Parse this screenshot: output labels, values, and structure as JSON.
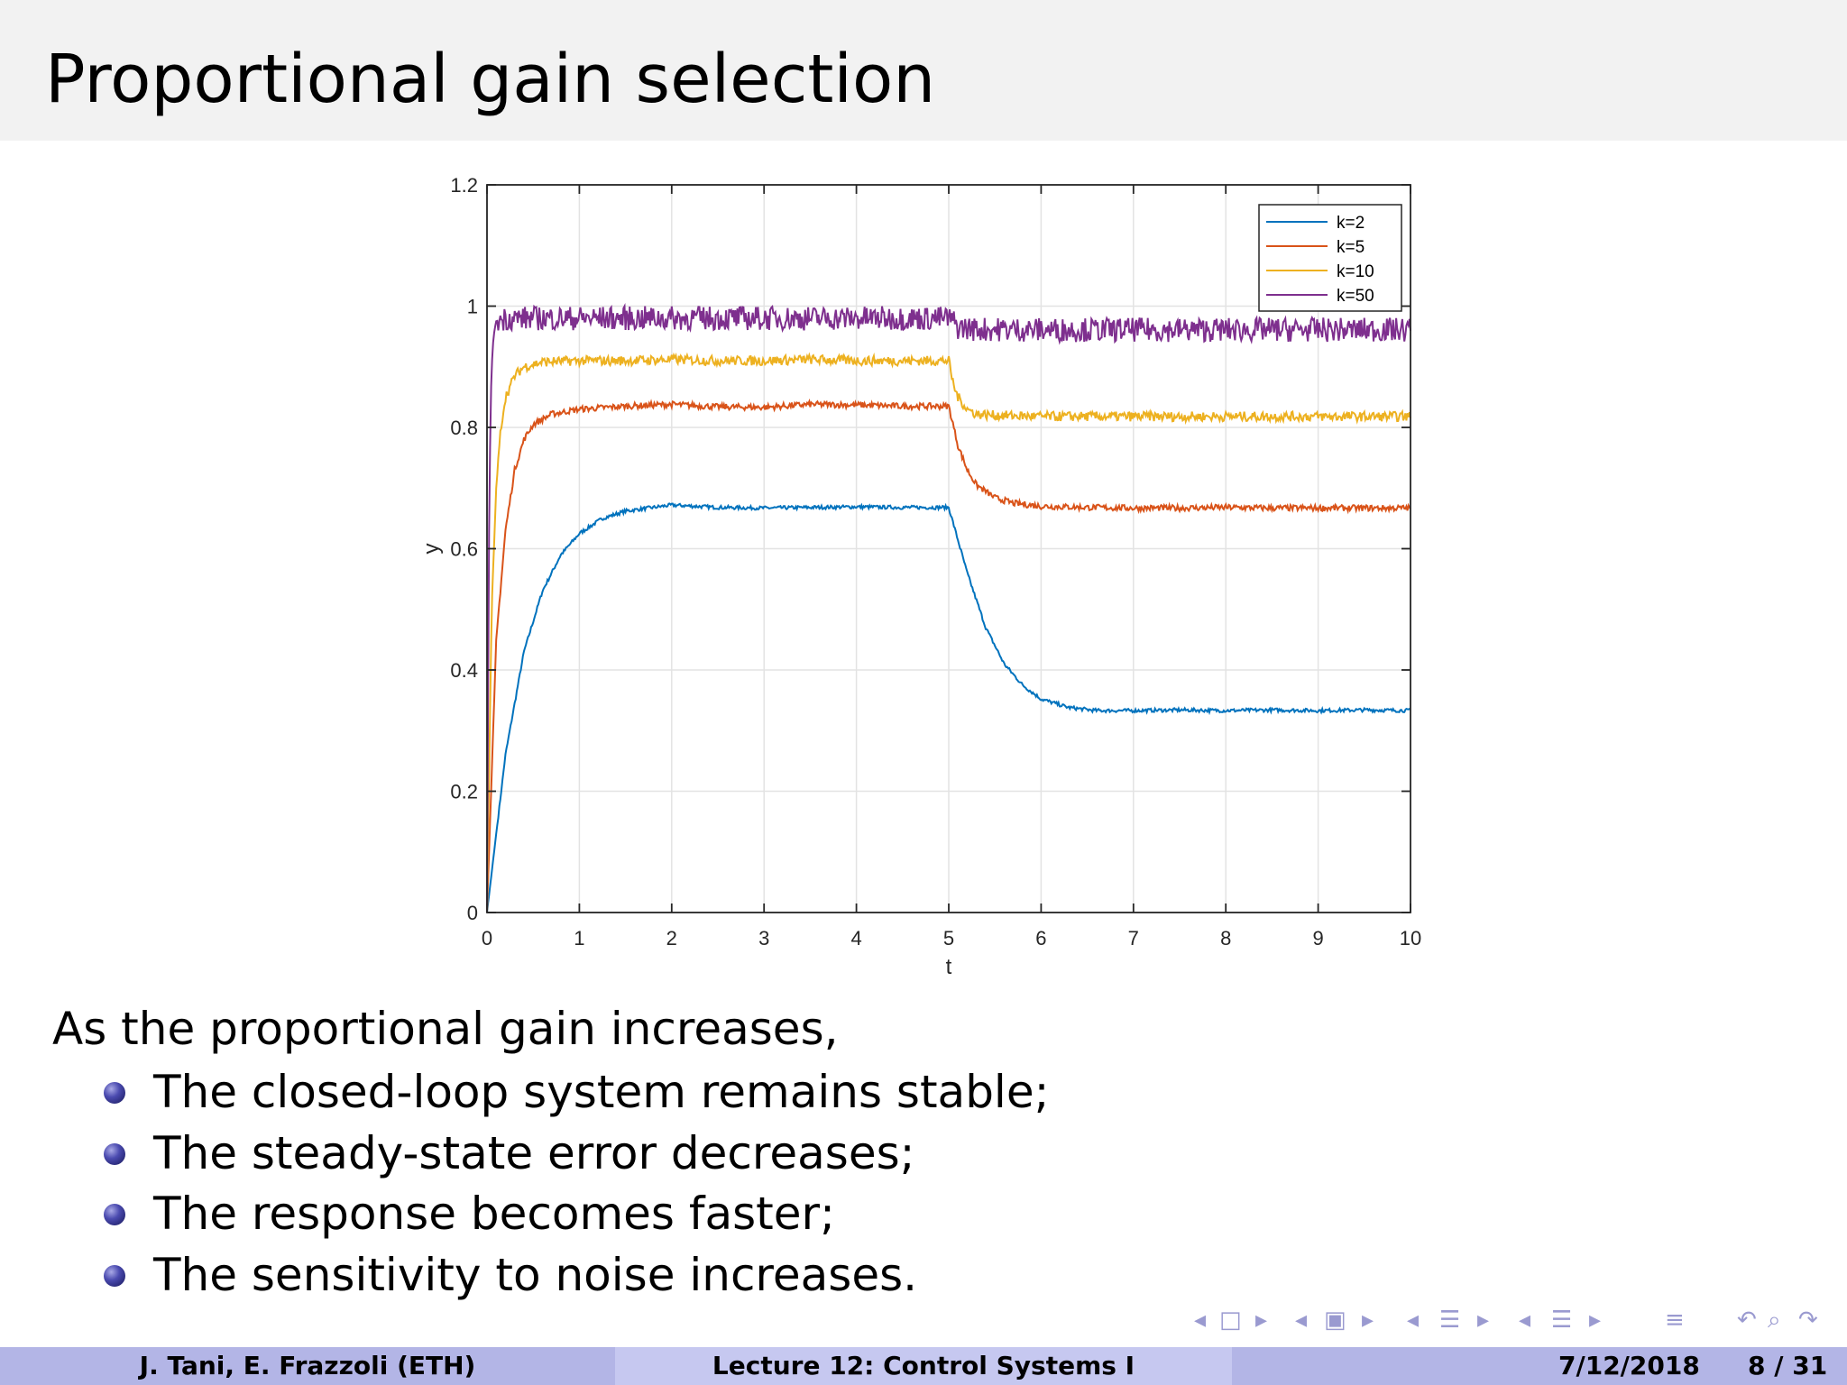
{
  "slide": {
    "title": "Proportional gain selection",
    "intro": "As the proportional gain increases,",
    "bullets": [
      "The closed-loop system remains stable;",
      "The steady-state error decreases;",
      "The response becomes faster;",
      "The sensitivity to noise increases."
    ]
  },
  "footer": {
    "authors": "J. Tani, E. Frazzoli  (ETH)",
    "lecture": "Lecture 12: Control Systems I",
    "date": "7/12/2018",
    "page": "8 / 31"
  },
  "nav_icons": [
    "nav-prev-icon",
    "frame-icon",
    "nav-next-icon",
    "nav-prev-icon",
    "subsection-icon",
    "nav-next-icon",
    "nav-prev-icon",
    "section-icon",
    "nav-next-icon",
    "nav-prev-icon",
    "presentation-icon",
    "nav-next-icon",
    "toc-icon",
    "back-icon",
    "search-icon",
    "forward-icon"
  ],
  "colors": {
    "title_bar": "#f2f2f2",
    "footer_dark": "#b3b5e6",
    "footer_light": "#c6c8f0",
    "bullet": "#2b2b86"
  },
  "chart_data": {
    "type": "line",
    "title": "",
    "xlabel": "t",
    "ylabel": "y",
    "xlim": [
      0,
      10
    ],
    "ylim": [
      0,
      1.2
    ],
    "xticks": [
      0,
      1,
      2,
      3,
      4,
      5,
      6,
      7,
      8,
      9,
      10
    ],
    "yticks": [
      0,
      0.2,
      0.4,
      0.6,
      0.8,
      1,
      1.2
    ],
    "xtick_labels": [
      "0",
      "1",
      "2",
      "3",
      "4",
      "5",
      "6",
      "7",
      "8",
      "9",
      "10"
    ],
    "ytick_labels": [
      "0",
      "0.2",
      "0.4",
      "0.6",
      "0.8",
      "1",
      "1.2"
    ],
    "grid": true,
    "legend_position": "top-right",
    "series": [
      {
        "name": "k=2",
        "color": "#0072bd",
        "x": [
          0,
          0.2,
          0.4,
          0.6,
          0.8,
          1,
          1.25,
          1.5,
          2,
          2.5,
          3,
          3.5,
          4,
          4.5,
          5,
          5.2,
          5.4,
          5.6,
          5.8,
          6,
          6.3,
          6.6,
          7,
          7.5,
          8,
          8.5,
          9,
          9.5,
          10
        ],
        "y": [
          0,
          0.26,
          0.43,
          0.53,
          0.59,
          0.625,
          0.65,
          0.662,
          0.672,
          0.668,
          0.667,
          0.668,
          0.669,
          0.668,
          0.668,
          0.56,
          0.47,
          0.41,
          0.375,
          0.352,
          0.338,
          0.333,
          0.333,
          0.334,
          0.333,
          0.334,
          0.333,
          0.334,
          0.333
        ]
      },
      {
        "name": "k=5",
        "color": "#d95319",
        "x": [
          0,
          0.1,
          0.2,
          0.3,
          0.4,
          0.5,
          0.7,
          1,
          1.5,
          2,
          2.5,
          3,
          3.5,
          4,
          4.5,
          5,
          5.1,
          5.2,
          5.3,
          5.5,
          5.7,
          6,
          6.5,
          7,
          7.5,
          8,
          8.5,
          9,
          9.5,
          10
        ],
        "y": [
          0,
          0.45,
          0.63,
          0.73,
          0.78,
          0.805,
          0.822,
          0.83,
          0.835,
          0.838,
          0.834,
          0.833,
          0.838,
          0.837,
          0.835,
          0.835,
          0.77,
          0.73,
          0.705,
          0.684,
          0.675,
          0.67,
          0.668,
          0.667,
          0.667,
          0.668,
          0.667,
          0.667,
          0.667,
          0.667
        ]
      },
      {
        "name": "k=10",
        "color": "#edb120",
        "x": [
          0,
          0.05,
          0.1,
          0.15,
          0.2,
          0.3,
          0.4,
          0.6,
          1,
          1.5,
          2,
          2.5,
          3,
          3.5,
          4,
          4.5,
          5,
          5.05,
          5.1,
          5.2,
          5.3,
          5.5,
          6,
          6.5,
          7,
          7.5,
          8,
          8.5,
          9,
          9.5,
          10
        ],
        "y": [
          0,
          0.5,
          0.7,
          0.8,
          0.85,
          0.885,
          0.9,
          0.908,
          0.91,
          0.91,
          0.912,
          0.91,
          0.91,
          0.912,
          0.91,
          0.91,
          0.91,
          0.87,
          0.85,
          0.83,
          0.822,
          0.82,
          0.818,
          0.818,
          0.818,
          0.818,
          0.818,
          0.818,
          0.818,
          0.818,
          0.818
        ]
      },
      {
        "name": "k=50",
        "color": "#7e2f8e",
        "x": [
          0,
          0.02,
          0.04,
          0.06,
          0.08,
          0.1,
          0.2,
          0.5,
          1,
          2,
          3,
          4,
          5,
          5.05,
          5.1,
          5.3,
          6,
          7,
          8,
          9,
          10
        ],
        "y": [
          0,
          0.6,
          0.85,
          0.93,
          0.96,
          0.975,
          0.98,
          0.98,
          0.98,
          0.98,
          0.98,
          0.98,
          0.98,
          0.975,
          0.965,
          0.962,
          0.961,
          0.961,
          0.961,
          0.961,
          0.961
        ],
        "noise_amplitude": 0.02
      }
    ]
  }
}
